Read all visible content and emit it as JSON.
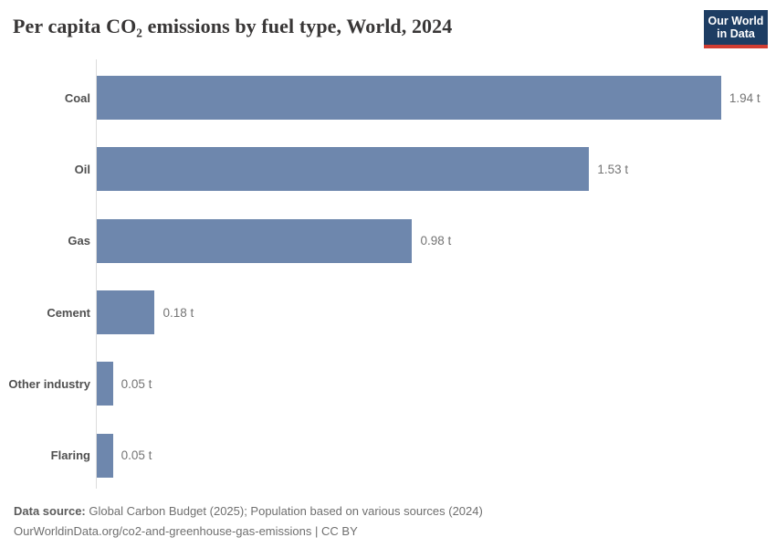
{
  "header": {
    "title": "Per capita CO₂ emissions by fuel type, World, 2024",
    "logo": {
      "line1": "Our World",
      "line2": "in Data",
      "bg_color": "#1d3d63",
      "accent_color": "#d13d32"
    }
  },
  "chart_data": {
    "type": "bar",
    "orientation": "horizontal",
    "title": "Per capita CO₂ emissions by fuel type, World, 2024",
    "categories": [
      "Coal",
      "Oil",
      "Gas",
      "Cement",
      "Other industry",
      "Flaring"
    ],
    "values": [
      1.94,
      1.53,
      0.98,
      0.18,
      0.05,
      0.05
    ],
    "value_labels": [
      "1.94 t",
      "1.53 t",
      "0.98 t",
      "0.18 t",
      "0.05 t",
      "0.05 t"
    ],
    "unit": "t",
    "xlabel": "",
    "ylabel": "",
    "xlim": [
      0,
      2.0
    ],
    "grid": false,
    "legend": false,
    "bar_color": "#6e87ad",
    "axis_line_color": "#dcdcdc"
  },
  "footer": {
    "source_prefix": "Data source:",
    "source": "Global Carbon Budget (2025); Population based on various sources (2024)",
    "url": "OurWorldinData.org/co2-and-greenhouse-gas-emissions",
    "separator": "|",
    "license": "CC BY"
  }
}
